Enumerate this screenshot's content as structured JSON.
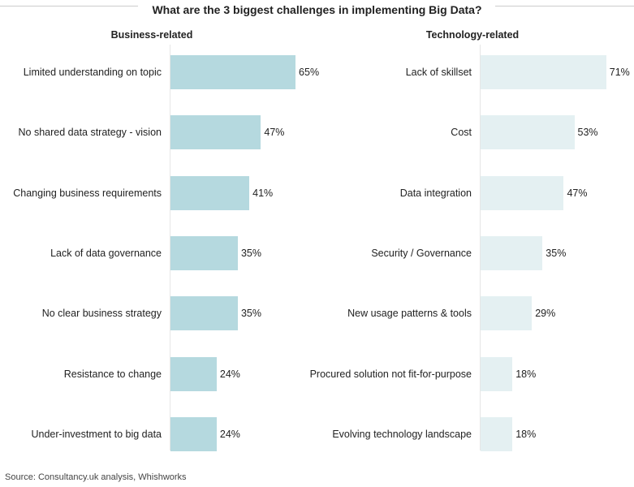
{
  "chart_data": [
    {
      "type": "bar",
      "orientation": "horizontal",
      "title": "Business-related",
      "color": "#b5d9df",
      "categories": [
        "Limited understanding on topic",
        "No shared data strategy - vision",
        "Changing business requirements",
        "Lack of data governance",
        "No clear business strategy",
        "Resistance to change",
        "Under-investment to big data"
      ],
      "values": [
        65,
        47,
        41,
        35,
        35,
        24,
        24
      ],
      "labels": [
        "65%",
        "47%",
        "41%",
        "35%",
        "35%",
        "24%",
        "24%"
      ],
      "unit": "%"
    },
    {
      "type": "bar",
      "orientation": "horizontal",
      "title": "Technology-related",
      "color": "#e4f0f2",
      "categories": [
        "Lack of skillset",
        "Cost",
        "Data integration",
        "Security / Governance",
        "New usage patterns & tools",
        "Procured solution not fit-for-purpose",
        "Evolving technology landscape"
      ],
      "values": [
        71,
        53,
        47,
        35,
        29,
        18,
        18
      ],
      "labels": [
        "71%",
        "53%",
        "47%",
        "35%",
        "29%",
        "18%",
        "18%"
      ],
      "unit": "%"
    }
  ],
  "title": "What are the 3 biggest challenges in implementing Big Data?",
  "source": "Source: Consultancy.uk analysis, Whishworks"
}
